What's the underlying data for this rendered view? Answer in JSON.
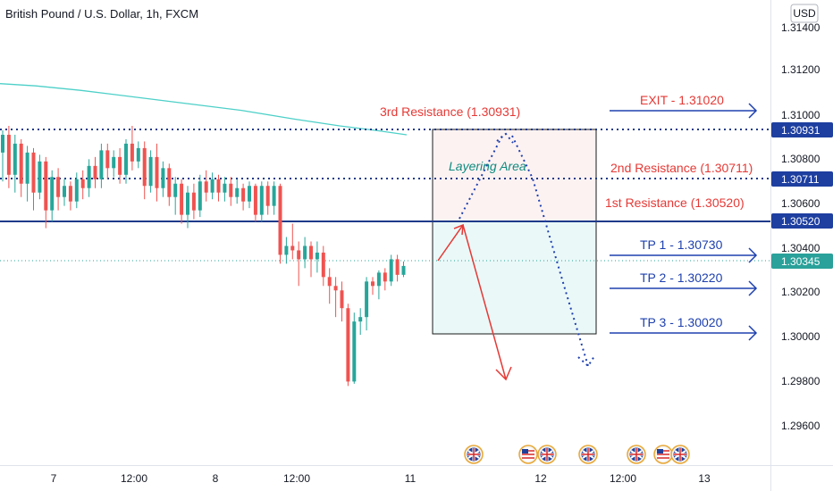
{
  "header": {
    "title": "British Pound / U.S. Dollar, 1h, FXCM"
  },
  "price_axis": {
    "currency": "USD",
    "ticks": [
      "1.31400",
      "1.31200",
      "1.31000",
      "1.30800",
      "1.30600",
      "1.30400",
      "1.30200",
      "1.30000",
      "1.29800",
      "1.29600"
    ]
  },
  "time_axis": {
    "ticks": [
      "7",
      "12:00",
      "8",
      "12:00",
      "11",
      "12",
      "12:00",
      "13"
    ]
  },
  "colors": {
    "bull": "#26a69a",
    "bear": "#ef5350",
    "ma": "#4dd0c8",
    "level_blue": "#1e3a8a",
    "arrow_blue": "#1e40af",
    "red_text": "#e53935",
    "teal_text": "#0e8a7e",
    "badge_blue": "#1e3fa0",
    "current_badge": "#2aa19a"
  },
  "levels": {
    "r3_badge": "1.30931",
    "r2_badge": "1.30711",
    "r1_badge": "1.30520",
    "current_badge": "1.30345"
  },
  "annotations": {
    "r3": "3rd Resistance (1.30931)",
    "r2": "2nd Resistance (1.30711)",
    "r1": "1st Resistance (1.30520)",
    "layering": "Layering Area",
    "exit": "EXIT - 1.31020",
    "tp1": "TP 1 - 1.30730",
    "tp2": "TP 2 - 1.30220",
    "tp3": "TP 3 - 1.30020"
  },
  "event_icons": [
    "uk-flag-icon",
    "us-flag-icon",
    "uk-flag-icon",
    "uk-flag-icon",
    "uk-flag-icon",
    "us-flag-icon",
    "uk-flag-icon"
  ],
  "chart_data": {
    "type": "candlestick",
    "title": "British Pound / U.S. Dollar, 1h, FXCM",
    "ylim": [
      1.2943,
      1.3149
    ],
    "moving_average": [
      [
        0,
        1.3117
      ],
      [
        40,
        1.3116
      ],
      [
        90,
        1.3114
      ],
      [
        150,
        1.3111
      ],
      [
        210,
        1.3108
      ],
      [
        270,
        1.3105
      ],
      [
        330,
        1.3101
      ],
      [
        380,
        1.3098
      ],
      [
        420,
        1.3096
      ],
      [
        455,
        1.3094
      ]
    ],
    "candles": [
      [
        1.3086,
        1.3094,
        1.3073,
        1.3096
      ],
      [
        1.3094,
        1.3076,
        1.307,
        1.3098
      ],
      [
        1.3076,
        1.309,
        1.3068,
        1.3094
      ],
      [
        1.309,
        1.3072,
        1.3066,
        1.3092
      ],
      [
        1.3072,
        1.3086,
        1.3064,
        1.3089
      ],
      [
        1.3086,
        1.3068,
        1.306,
        1.3088
      ],
      [
        1.3068,
        1.3082,
        1.3065,
        1.3085
      ],
      [
        1.3082,
        1.306,
        1.3052,
        1.3084
      ],
      [
        1.306,
        1.3075,
        1.3055,
        1.3078
      ],
      [
        1.3075,
        1.3066,
        1.306,
        1.3079
      ],
      [
        1.3066,
        1.3071,
        1.3062,
        1.3074
      ],
      [
        1.3071,
        1.3064,
        1.306,
        1.3073
      ],
      [
        1.3064,
        1.3074,
        1.3061,
        1.3077
      ],
      [
        1.3074,
        1.307,
        1.3065,
        1.3078
      ],
      [
        1.307,
        1.308,
        1.3066,
        1.3083
      ],
      [
        1.308,
        1.3074,
        1.307,
        1.3084
      ],
      [
        1.3074,
        1.3087,
        1.307,
        1.309
      ],
      [
        1.3087,
        1.3079,
        1.3074,
        1.309
      ],
      [
        1.3079,
        1.3084,
        1.3075,
        1.3087
      ],
      [
        1.3084,
        1.3076,
        1.3072,
        1.3088
      ],
      [
        1.3076,
        1.309,
        1.3072,
        1.3092
      ],
      [
        1.309,
        1.3082,
        1.3078,
        1.3098
      ],
      [
        1.3082,
        1.3088,
        1.3079,
        1.3091
      ],
      [
        1.3088,
        1.3071,
        1.3065,
        1.3091
      ],
      [
        1.3071,
        1.3084,
        1.3068,
        1.3087
      ],
      [
        1.3084,
        1.307,
        1.3064,
        1.309
      ],
      [
        1.307,
        1.3079,
        1.3066,
        1.3082
      ],
      [
        1.3079,
        1.3066,
        1.3062,
        1.3081
      ],
      [
        1.3066,
        1.3072,
        1.3058,
        1.3075
      ],
      [
        1.3072,
        1.3058,
        1.3054,
        1.3074
      ],
      [
        1.3058,
        1.3068,
        1.3052,
        1.3071
      ],
      [
        1.3068,
        1.306,
        1.3056,
        1.3072
      ],
      [
        1.306,
        1.3073,
        1.3057,
        1.3076
      ],
      [
        1.3073,
        1.3068,
        1.3064,
        1.3078
      ],
      [
        1.3068,
        1.3074,
        1.3065,
        1.3077
      ],
      [
        1.3074,
        1.3068,
        1.3064,
        1.3076
      ],
      [
        1.3068,
        1.3072,
        1.3064,
        1.3075
      ],
      [
        1.3072,
        1.3066,
        1.3062,
        1.3075
      ],
      [
        1.3066,
        1.307,
        1.3063,
        1.3074
      ],
      [
        1.307,
        1.3064,
        1.306,
        1.3072
      ],
      [
        1.3064,
        1.3071,
        1.3061,
        1.3073
      ],
      [
        1.3071,
        1.3058,
        1.3055,
        1.3072
      ],
      [
        1.3058,
        1.3071,
        1.3055,
        1.3073
      ],
      [
        1.3071,
        1.3062,
        1.3058,
        1.3073
      ],
      [
        1.3062,
        1.3071,
        1.3058,
        1.3073
      ],
      [
        1.3071,
        1.304,
        1.3036,
        1.3072
      ],
      [
        1.304,
        1.3044,
        1.3036,
        1.3048
      ],
      [
        1.3044,
        1.3042,
        1.3038,
        1.3054
      ],
      [
        1.3042,
        1.3038,
        1.3026,
        1.3046
      ],
      [
        1.3038,
        1.3044,
        1.3034,
        1.3048
      ],
      [
        1.3044,
        1.3038,
        1.303,
        1.3046
      ],
      [
        1.3038,
        1.3041,
        1.3032,
        1.3046
      ],
      [
        1.3041,
        1.303,
        1.3026,
        1.3044
      ],
      [
        1.303,
        1.3026,
        1.3018,
        1.3034
      ],
      [
        1.3026,
        1.3024,
        1.3012,
        1.303
      ],
      [
        1.3024,
        1.3016,
        1.301,
        1.3028
      ],
      [
        1.3016,
        1.2983,
        1.2981,
        1.3018
      ],
      [
        1.2983,
        1.301,
        1.2982,
        1.3014
      ],
      [
        1.301,
        1.3012,
        1.3004,
        1.3016
      ],
      [
        1.3012,
        1.3028,
        1.3006,
        1.303
      ],
      [
        1.3028,
        1.3026,
        1.3022,
        1.303
      ],
      [
        1.3026,
        1.3032,
        1.302,
        1.3033
      ],
      [
        1.3032,
        1.3028,
        1.3024,
        1.3034
      ],
      [
        1.3028,
        1.3038,
        1.3026,
        1.304
      ],
      [
        1.3038,
        1.3031,
        1.3028,
        1.304
      ],
      [
        1.3031,
        1.3035,
        1.303,
        1.3037
      ]
    ]
  }
}
